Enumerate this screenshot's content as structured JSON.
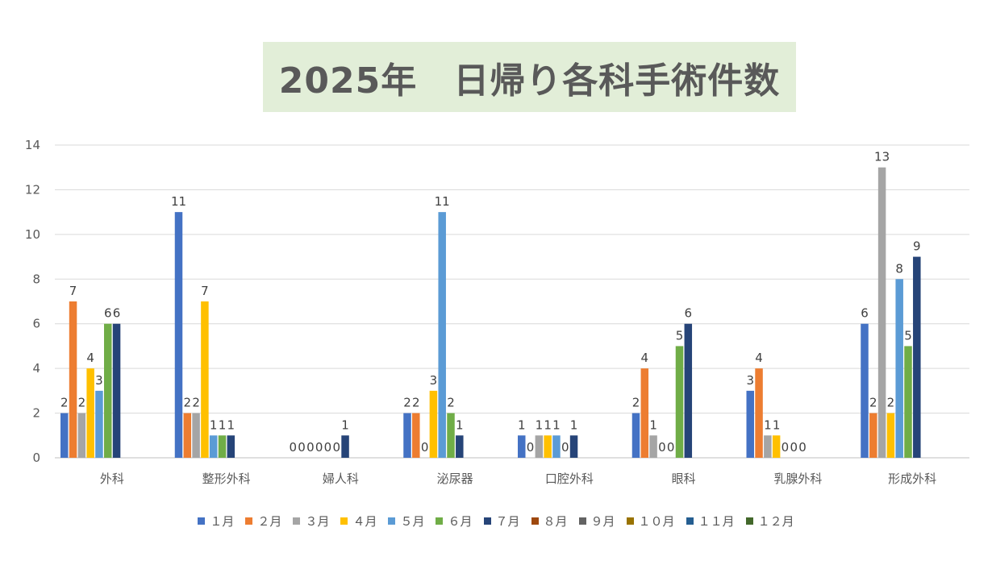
{
  "chart_data": {
    "type": "bar",
    "title": "2025年　日帰り各科手術件数",
    "xlabel": "",
    "ylabel": "",
    "ylim": [
      0,
      14
    ],
    "yticks": [
      0,
      2,
      4,
      6,
      8,
      10,
      12,
      14
    ],
    "grid": true,
    "legend_position": "bottom",
    "categories": [
      "外科",
      "整形外科",
      "婦人科",
      "泌尿器",
      "口腔外科",
      "眼科",
      "乳腺外科",
      "形成外科"
    ],
    "series": [
      {
        "name": "１月",
        "color": "#4472c4",
        "values": [
          2,
          11,
          0,
          2,
          1,
          2,
          3,
          6
        ]
      },
      {
        "name": "２月",
        "color": "#ed7d31",
        "values": [
          7,
          2,
          0,
          2,
          0,
          4,
          4,
          2
        ]
      },
      {
        "name": "３月",
        "color": "#a5a5a5",
        "values": [
          2,
          2,
          0,
          0,
          1,
          1,
          1,
          13
        ]
      },
      {
        "name": "４月",
        "color": "#ffc000",
        "values": [
          4,
          7,
          0,
          3,
          1,
          0,
          1,
          2
        ]
      },
      {
        "name": "５月",
        "color": "#5b9bd5",
        "values": [
          3,
          1,
          0,
          11,
          1,
          0,
          0,
          8
        ]
      },
      {
        "name": "６月",
        "color": "#70ad47",
        "values": [
          6,
          1,
          0,
          2,
          0,
          5,
          0,
          5
        ]
      },
      {
        "name": "７月",
        "color": "#264478",
        "values": [
          6,
          1,
          1,
          1,
          1,
          6,
          0,
          9
        ]
      },
      {
        "name": "８月",
        "color": "#9e480e",
        "values": [
          null,
          null,
          null,
          null,
          null,
          null,
          null,
          null
        ]
      },
      {
        "name": "９月",
        "color": "#636363",
        "values": [
          null,
          null,
          null,
          null,
          null,
          null,
          null,
          null
        ]
      },
      {
        "name": "１０月",
        "color": "#997300",
        "values": [
          null,
          null,
          null,
          null,
          null,
          null,
          null,
          null
        ]
      },
      {
        "name": "１１月",
        "color": "#255e91",
        "values": [
          null,
          null,
          null,
          null,
          null,
          null,
          null,
          null
        ]
      },
      {
        "name": "１２月",
        "color": "#43682b",
        "values": [
          null,
          null,
          null,
          null,
          null,
          null,
          null,
          null
        ]
      }
    ]
  }
}
